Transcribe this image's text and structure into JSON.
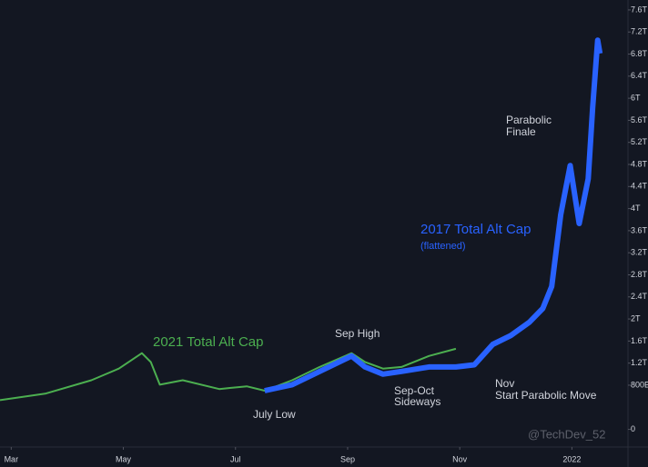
{
  "chart_data": {
    "type": "line",
    "xlim": [
      2.8,
      14.0
    ],
    "xticks": [
      {
        "value": 3,
        "label": "Mar"
      },
      {
        "value": 5,
        "label": "May"
      },
      {
        "value": 7,
        "label": "Jul"
      },
      {
        "value": 9,
        "label": "Sep"
      },
      {
        "value": 11,
        "label": "Nov"
      },
      {
        "value": 13,
        "label": "2022"
      }
    ],
    "ylim": [
      -0.32,
      7.78
    ],
    "yticks": [
      0,
      {
        "value": 0.8,
        "label": "800B"
      },
      {
        "value": 1.2,
        "label": "1.2T"
      },
      {
        "value": 1.6,
        "label": "1.6T"
      },
      {
        "value": 2,
        "label": "2T"
      },
      {
        "value": 2.4,
        "label": "2.4T"
      },
      {
        "value": 2.8,
        "label": "2.8T"
      },
      {
        "value": 3.2,
        "label": "3.2T"
      },
      {
        "value": 3.6,
        "label": "3.6T"
      },
      {
        "value": 4,
        "label": "4T"
      },
      {
        "value": 4.4,
        "label": "4.4T"
      },
      {
        "value": 4.8,
        "label": "4.8T"
      },
      {
        "value": 5.2,
        "label": "5.2T"
      },
      {
        "value": 5.6,
        "label": "5.6T"
      },
      {
        "value": 6,
        "label": "6T"
      },
      {
        "value": 6.4,
        "label": "6.4T"
      },
      {
        "value": 6.8,
        "label": "6.8T"
      },
      {
        "value": 7.2,
        "label": "7.2T"
      },
      {
        "value": 7.6,
        "label": "7.6T"
      }
    ],
    "grid": false,
    "series": [
      {
        "name": "2021 Total Alt Cap",
        "color": "#4caf50",
        "x": [
          2.8,
          3.62,
          4.43,
          4.92,
          5.33,
          5.49,
          5.65,
          6.06,
          6.71,
          7.2,
          7.52,
          8.01,
          8.5,
          9.07,
          9.31,
          9.63,
          9.96,
          10.45,
          10.93
        ],
        "values": [
          0.53,
          0.65,
          0.89,
          1.1,
          1.38,
          1.22,
          0.81,
          0.89,
          0.73,
          0.78,
          0.7,
          0.89,
          1.13,
          1.38,
          1.22,
          1.1,
          1.13,
          1.33,
          1.46
        ]
      },
      {
        "name": "2017 Total Alt Cap",
        "color": "#2962ff",
        "x": [
          7.52,
          8.01,
          8.5,
          9.07,
          9.31,
          9.63,
          9.96,
          10.45,
          10.93,
          11.26,
          11.59,
          11.91,
          12.24,
          12.48,
          12.64,
          12.8,
          12.97,
          13.13,
          13.29,
          13.37,
          13.46,
          13.5
        ],
        "values": [
          0.7,
          0.81,
          1.05,
          1.33,
          1.13,
          1.0,
          1.05,
          1.13,
          1.13,
          1.17,
          1.54,
          1.7,
          1.94,
          2.19,
          2.59,
          3.89,
          4.78,
          3.73,
          4.54,
          5.83,
          7.05,
          6.81
        ]
      }
    ],
    "subtitle": "(flattened)",
    "annotations": [
      "Sep High",
      "July Low",
      "Sep-Oct",
      "Sideways",
      "Nov",
      "Start Parabolic Move",
      "Parabolic",
      "Finale"
    ],
    "watermark": "@TechDev_52"
  }
}
